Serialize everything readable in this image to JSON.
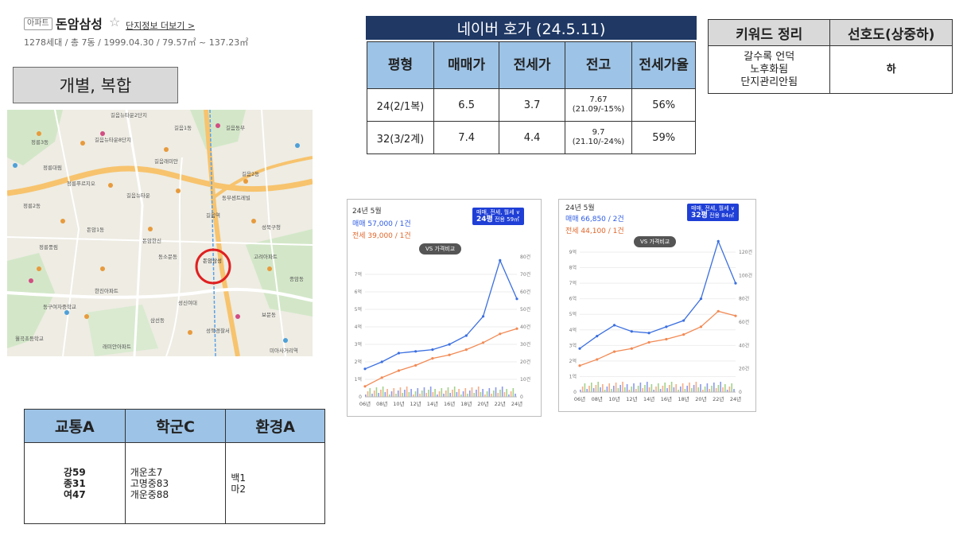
{
  "header": {
    "badge": "아파트",
    "name": "돈암삼성",
    "star": "☆",
    "more_link": "단지정보 더보기 >",
    "summary": "1278세대 / 총 7동 / 1999.04.30 / 79.57㎡ ~ 137.23㎡"
  },
  "type_box": "개별, 복합",
  "map": {
    "labels": [
      "길음뉴타운2단지",
      "길음1동",
      "길음동부",
      "길음뉴타운8단지",
      "정릉3동",
      "정릉대림",
      "길음래미안",
      "길음2동",
      "정릉푸르지오",
      "길음뉴타운",
      "동부센트레빌",
      "정릉2동",
      "길음역",
      "성북구청",
      "돈암1동",
      "돈암한신",
      "동소문동",
      "돈암삼성",
      "고려아파트",
      "종암동",
      "한진아파트",
      "성신여대",
      "삼선동",
      "보문동",
      "동구여자중학교",
      "성북경찰서",
      "월곡초등학교",
      "미아사거리역",
      "정릉풍림",
      "래미안아파트"
    ]
  },
  "price": {
    "title": "네이버 호가 (24.5.11)",
    "headers": [
      "평형",
      "매매가",
      "전세가",
      "전고",
      "전세가율"
    ],
    "rows": [
      {
        "type": "24(2/1복)",
        "sale": "6.5",
        "jeonse": "3.7",
        "high": "7.67",
        "high_note": "(21.09/-15%)",
        "ratio": "56%"
      },
      {
        "type": "32(3/2계)",
        "sale": "7.4",
        "jeonse": "4.4",
        "high": "9.7",
        "high_note": "(21.10/-24%)",
        "ratio": "59%"
      }
    ]
  },
  "keyword": {
    "headers": [
      "키워드 정리",
      "선호도(상중하)"
    ],
    "lines": [
      "갈수록 언덕",
      "노후화됨",
      "단지관리안됨"
    ],
    "preference": "하"
  },
  "scores": {
    "headers": [
      "교통A",
      "학군C",
      "환경A"
    ],
    "traffic": [
      "강59",
      "종31",
      "여47"
    ],
    "school": [
      "개운초7",
      "고명중83",
      "개운중88"
    ],
    "environment": [
      "백1",
      "마2"
    ]
  },
  "chart_data": [
    {
      "type": "line",
      "title": "24년 5월",
      "summary_sale": "매매 57,000 / 1건",
      "summary_jeonse": "전세 39,000 / 1건",
      "filter": "매매, 전세, 월세 ∨",
      "pyeong": "24평",
      "area": "전용 59㎡",
      "compare_button": "VS 가격비교",
      "categories": [
        "06년",
        "08년",
        "10년",
        "12년",
        "14년",
        "16년",
        "18년",
        "20년",
        "22년",
        "24년"
      ],
      "y_left_ticks": [
        "0",
        "1억",
        "2억",
        "3억",
        "4억",
        "5억",
        "6억",
        "7억"
      ],
      "y_right_ticks": [
        "0",
        "10건",
        "20건",
        "30건",
        "40건",
        "50건",
        "60건",
        "70건",
        "80건"
      ],
      "ylim": [
        0,
        8
      ],
      "y2lim": [
        0,
        80
      ],
      "series": [
        {
          "name": "매매",
          "color": "#3b6fe0",
          "values": [
            1.6,
            2.0,
            2.5,
            2.6,
            2.7,
            3.0,
            3.5,
            4.6,
            7.8,
            5.6
          ]
        },
        {
          "name": "전세",
          "color": "#f28a54",
          "values": [
            0.6,
            1.1,
            1.5,
            1.8,
            2.2,
            2.4,
            2.7,
            3.1,
            3.6,
            3.9
          ]
        }
      ]
    },
    {
      "type": "line",
      "title": "24년 5월",
      "summary_sale": "매매 66,850 / 2건",
      "summary_jeonse": "전세 44,100 / 1건",
      "filter": "매매, 전세, 월세 ∨",
      "pyeong": "32평",
      "area": "전용 84㎡",
      "compare_button": "VS 가격비교",
      "categories": [
        "06년",
        "08년",
        "10년",
        "12년",
        "14년",
        "16년",
        "18년",
        "20년",
        "22년",
        "24년"
      ],
      "y_left_ticks": [
        "0",
        "1억",
        "2억",
        "3억",
        "4억",
        "5억",
        "6억",
        "7억",
        "8억",
        "9억"
      ],
      "y_right_ticks": [
        "0",
        "20건",
        "40건",
        "60건",
        "80건",
        "100건",
        "120건"
      ],
      "ylim": [
        0,
        9
      ],
      "y2lim": [
        0,
        120
      ],
      "series": [
        {
          "name": "매매",
          "color": "#3b6fe0",
          "values": [
            2.8,
            3.6,
            4.3,
            3.9,
            3.8,
            4.2,
            4.6,
            6.0,
            9.7,
            7.0
          ]
        },
        {
          "name": "전세",
          "color": "#f28a54",
          "values": [
            1.7,
            2.1,
            2.6,
            2.8,
            3.2,
            3.4,
            3.7,
            4.2,
            5.2,
            4.9
          ]
        }
      ]
    }
  ]
}
